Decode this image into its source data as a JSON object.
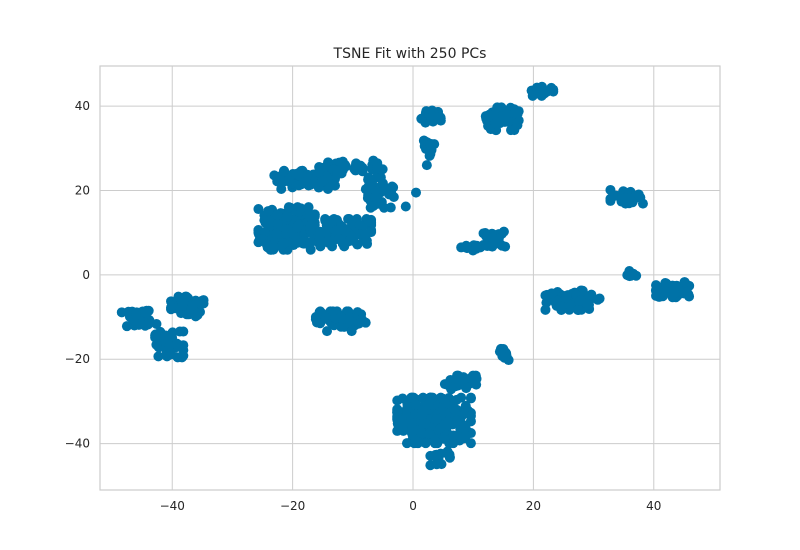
{
  "chart_data": {
    "type": "scatter",
    "title": "TSNE Fit with 250 PCs",
    "xlabel": "",
    "ylabel": "",
    "xlim": [
      -52,
      51
    ],
    "ylim": [
      -51,
      49.5
    ],
    "x_ticks": [
      -40,
      -20,
      0,
      20,
      40
    ],
    "y_ticks": [
      -40,
      -20,
      0,
      20,
      40
    ],
    "x_tick_labels": [
      "−40",
      "−20",
      "0",
      "20",
      "40"
    ],
    "y_tick_labels": [
      "−40",
      "−20",
      "0",
      "20",
      "40"
    ],
    "grid": true,
    "point_color": "#0072a7",
    "clusters": [
      {
        "cx": -45.5,
        "cy": -10.5,
        "sx": 1.6,
        "sy": 1.1,
        "n": 40
      },
      {
        "cx": -40.5,
        "cy": -16.5,
        "sx": 1.3,
        "sy": 1.7,
        "n": 45
      },
      {
        "cx": -37.5,
        "cy": -7.5,
        "sx": 1.5,
        "sy": 1.3,
        "n": 40
      },
      {
        "cx": -21.0,
        "cy": 11.0,
        "sx": 2.6,
        "sy": 2.8,
        "n": 170
      },
      {
        "cx": -18.0,
        "cy": 22.5,
        "sx": 2.8,
        "sy": 1.2,
        "n": 70
      },
      {
        "cx": -12.0,
        "cy": 25.5,
        "sx": 2.0,
        "sy": 0.8,
        "n": 35
      },
      {
        "cx": -12.0,
        "cy": 10.0,
        "sx": 2.8,
        "sy": 1.8,
        "n": 120
      },
      {
        "cx": -5.5,
        "cy": 19.5,
        "sx": 1.3,
        "sy": 2.0,
        "n": 45
      },
      {
        "cx": -6.0,
        "cy": 26.0,
        "sx": 0.8,
        "sy": 0.6,
        "n": 12
      },
      {
        "cx": -12.0,
        "cy": -11.0,
        "sx": 2.3,
        "sy": 1.3,
        "n": 65
      },
      {
        "cx": 3.0,
        "cy": 37.5,
        "sx": 0.9,
        "sy": 0.8,
        "n": 18
      },
      {
        "cx": 2.5,
        "cy": 30.0,
        "sx": 0.7,
        "sy": 1.0,
        "n": 15
      },
      {
        "cx": 14.5,
        "cy": 37.0,
        "sx": 1.7,
        "sy": 1.5,
        "n": 55
      },
      {
        "cx": 21.5,
        "cy": 43.5,
        "sx": 1.0,
        "sy": 0.6,
        "n": 20
      },
      {
        "cx": 13.5,
        "cy": 8.5,
        "sx": 1.0,
        "sy": 1.0,
        "n": 22
      },
      {
        "cx": 11.0,
        "cy": 6.5,
        "sx": 1.2,
        "sy": 0.5,
        "n": 10
      },
      {
        "cx": 15.2,
        "cy": -19.0,
        "sx": 0.6,
        "sy": 0.8,
        "n": 10
      },
      {
        "cx": 26.5,
        "cy": -6.0,
        "sx": 2.5,
        "sy": 1.3,
        "n": 80
      },
      {
        "cx": 35.5,
        "cy": 18.5,
        "sx": 1.5,
        "sy": 0.9,
        "n": 30
      },
      {
        "cx": 36.5,
        "cy": 0.0,
        "sx": 0.5,
        "sy": 0.5,
        "n": 8
      },
      {
        "cx": 43.0,
        "cy": -3.5,
        "sx": 1.6,
        "sy": 1.0,
        "n": 50
      },
      {
        "cx": 3.5,
        "cy": -34.5,
        "sx": 3.4,
        "sy": 3.0,
        "n": 240
      },
      {
        "cx": 8.0,
        "cy": -25.5,
        "sx": 1.5,
        "sy": 0.9,
        "n": 30
      },
      {
        "cx": 4.5,
        "cy": -43.5,
        "sx": 0.9,
        "sy": 0.9,
        "n": 18
      }
    ],
    "outliers": [
      {
        "x": 0.5,
        "y": 19.5
      },
      {
        "x": -1.2,
        "y": 16.2
      },
      {
        "x": 2.3,
        "y": 26.0
      },
      {
        "x": 8.0,
        "y": 6.5
      }
    ]
  }
}
